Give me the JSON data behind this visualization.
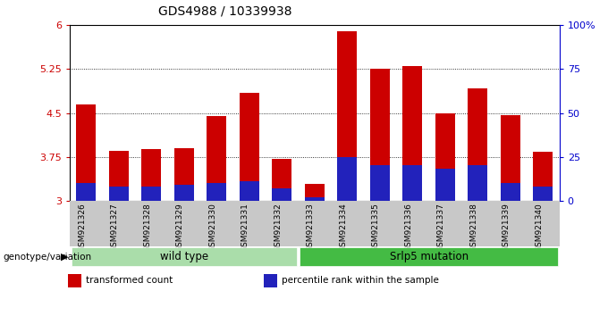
{
  "title": "GDS4988 / 10339938",
  "samples": [
    "GSM921326",
    "GSM921327",
    "GSM921328",
    "GSM921329",
    "GSM921330",
    "GSM921331",
    "GSM921332",
    "GSM921333",
    "GSM921334",
    "GSM921335",
    "GSM921336",
    "GSM921337",
    "GSM921338",
    "GSM921339",
    "GSM921340"
  ],
  "transformed_count": [
    4.65,
    3.85,
    3.88,
    3.9,
    4.45,
    4.85,
    3.72,
    3.28,
    5.9,
    5.25,
    5.3,
    4.5,
    4.92,
    4.47,
    3.83
  ],
  "percentile_rank": [
    10,
    8,
    8,
    9,
    10,
    11,
    7,
    2,
    25,
    20,
    20,
    18,
    20,
    10,
    8
  ],
  "ymin": 3.0,
  "ymax": 6.0,
  "yticks": [
    3.0,
    3.75,
    4.5,
    5.25,
    6.0
  ],
  "ytick_labels": [
    "3",
    "3.75",
    "4.5",
    "5.25",
    "6"
  ],
  "right_yticks": [
    0,
    25,
    50,
    75,
    100
  ],
  "right_ytick_labels": [
    "0",
    "25",
    "50",
    "75",
    "100%"
  ],
  "bar_color": "#cc0000",
  "blue_color": "#2222bb",
  "bar_width": 0.6,
  "groups": [
    {
      "label": "wild type",
      "start": 0,
      "end": 6,
      "color": "#aaddaa"
    },
    {
      "label": "Srlp5 mutation",
      "start": 7,
      "end": 14,
      "color": "#44bb44"
    }
  ],
  "group_label_prefix": "genotype/variation",
  "legend_items": [
    {
      "label": "transformed count",
      "color": "#cc0000"
    },
    {
      "label": "percentile rank within the sample",
      "color": "#2222bb"
    }
  ],
  "tick_label_color": "#cc0000",
  "right_axis_color": "#0000cc",
  "background_tick": "#c8c8c8"
}
